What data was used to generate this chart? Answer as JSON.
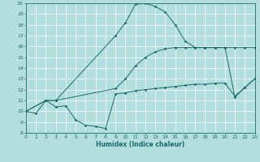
{
  "xlabel": "Humidex (Indice chaleur)",
  "xlim": [
    0,
    23
  ],
  "ylim": [
    8,
    20
  ],
  "xticks": [
    0,
    1,
    2,
    3,
    4,
    5,
    6,
    7,
    8,
    9,
    10,
    11,
    12,
    13,
    14,
    15,
    16,
    17,
    18,
    19,
    20,
    21,
    22,
    23
  ],
  "yticks": [
    8,
    9,
    10,
    11,
    12,
    13,
    14,
    15,
    16,
    17,
    18,
    19,
    20
  ],
  "background_color": "#b2dede",
  "grid_color": "#ffffff",
  "line_color": "#1a6b6b",
  "curve1_x": [
    0,
    1,
    2,
    3,
    4,
    5,
    6,
    7,
    8,
    9,
    10,
    11,
    12,
    13,
    14,
    15,
    16,
    17,
    18,
    19,
    20,
    21,
    22,
    23
  ],
  "curve1_y": [
    10.0,
    9.8,
    11.0,
    10.4,
    10.5,
    9.2,
    8.7,
    8.6,
    8.4,
    11.6,
    11.7,
    11.9,
    12.0,
    12.1,
    12.2,
    12.3,
    12.4,
    12.5,
    12.5,
    12.6,
    12.6,
    11.4,
    12.2,
    13.0
  ],
  "curve2_x": [
    0,
    2,
    3,
    9,
    10,
    11,
    12,
    13,
    14,
    15,
    16,
    17,
    18,
    19,
    20,
    21,
    22,
    23
  ],
  "curve2_y": [
    10.0,
    11.0,
    11.0,
    17.0,
    18.2,
    19.9,
    20.0,
    19.7,
    19.2,
    18.0,
    16.5,
    15.9,
    15.9,
    15.9,
    15.9,
    15.9,
    15.9,
    15.9
  ],
  "curve3_x": [
    0,
    2,
    3,
    9,
    10,
    11,
    12,
    13,
    14,
    15,
    16,
    17,
    18,
    19,
    20,
    21,
    22,
    23
  ],
  "curve3_y": [
    10.0,
    11.0,
    11.0,
    12.1,
    13.0,
    14.2,
    15.0,
    15.5,
    15.8,
    15.9,
    15.9,
    15.9,
    15.9,
    15.9,
    15.9,
    11.3,
    12.2,
    13.0
  ]
}
